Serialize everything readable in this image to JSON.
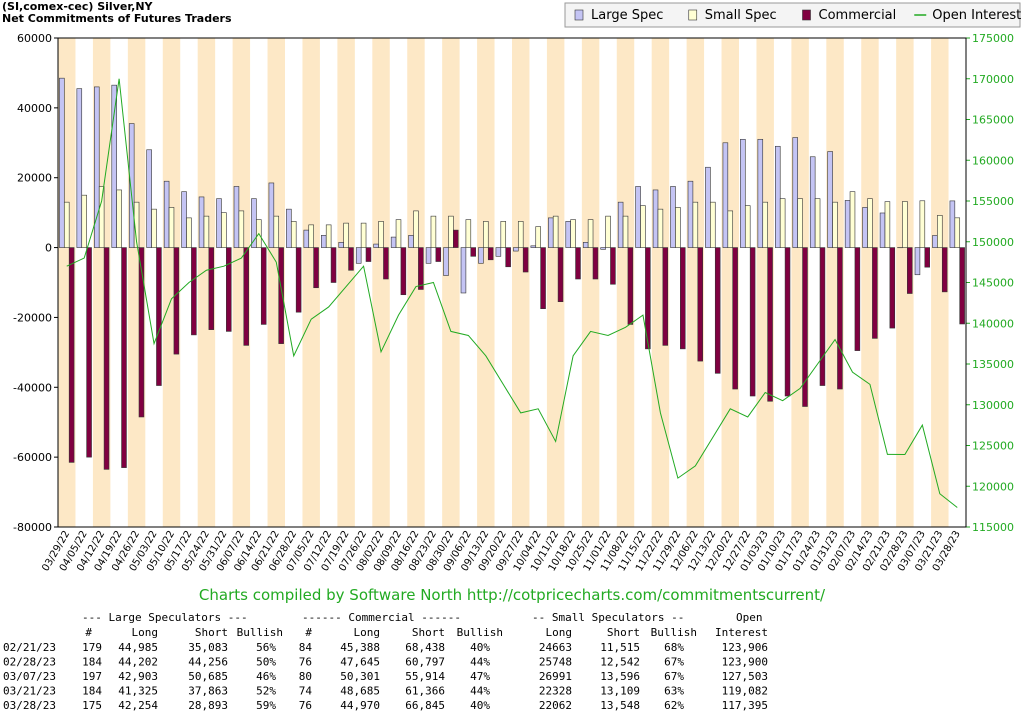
{
  "chart_data": {
    "type": "bar",
    "title": "(SI,comex-cec) Silver,NY",
    "subtitle": "Net Commitments of Futures Traders",
    "categories": [
      "03/29/22",
      "04/05/22",
      "04/12/22",
      "04/19/22",
      "04/26/22",
      "05/03/22",
      "05/10/22",
      "05/17/22",
      "05/24/22",
      "05/31/22",
      "06/07/22",
      "06/14/22",
      "06/21/22",
      "06/28/22",
      "07/05/22",
      "07/12/22",
      "07/19/22",
      "07/26/22",
      "08/02/22",
      "08/09/22",
      "08/16/22",
      "08/23/22",
      "08/30/22",
      "09/06/22",
      "09/13/22",
      "09/20/22",
      "09/27/22",
      "10/04/22",
      "10/11/22",
      "10/18/22",
      "10/25/22",
      "11/01/22",
      "11/08/22",
      "11/15/22",
      "11/22/22",
      "11/29/22",
      "12/06/22",
      "12/13/22",
      "12/20/22",
      "12/27/22",
      "01/03/23",
      "01/10/23",
      "01/17/23",
      "01/24/23",
      "01/31/23",
      "02/07/23",
      "02/14/23",
      "02/21/23",
      "02/28/23",
      "03/07/23",
      "03/21/23",
      "03/28/23"
    ],
    "series": [
      {
        "name": "Large Spec",
        "color": "#c4c4f4",
        "values": [
          48500,
          45500,
          46000,
          46500,
          35500,
          28000,
          19000,
          16000,
          14500,
          14000,
          17500,
          14000,
          18500,
          11000,
          5000,
          3500,
          1500,
          -4500,
          1000,
          3000,
          3500,
          -4500,
          -8000,
          -13000,
          -4500,
          -2500,
          -1000,
          500,
          8500,
          7500,
          1500,
          -500,
          13000,
          17500,
          16500,
          17500,
          19000,
          23000,
          30000,
          31000,
          31000,
          29000,
          31500,
          26000,
          27500,
          13500,
          11500,
          9902,
          -54,
          -7782,
          3462,
          13361
        ]
      },
      {
        "name": "Small Spec",
        "color": "#ffffd4",
        "values": [
          13000,
          15000,
          17500,
          16500,
          13000,
          11000,
          11500,
          8500,
          9000,
          10000,
          10500,
          8000,
          9000,
          7500,
          6500,
          6500,
          7000,
          7000,
          7500,
          8000,
          10500,
          9000,
          9000,
          8000,
          7500,
          7500,
          7500,
          6000,
          9000,
          8000,
          8000,
          9000,
          9000,
          12000,
          11000,
          11500,
          13000,
          13000,
          10500,
          12000,
          13000,
          14000,
          14000,
          14000,
          13000,
          16000,
          14000,
          13148,
          13206,
          13395,
          9219,
          8514
        ]
      },
      {
        "name": "Commercial",
        "color": "#800040",
        "values": [
          -61500,
          -60000,
          -63500,
          -63000,
          -48500,
          -39500,
          -30500,
          -25000,
          -23500,
          -24000,
          -28000,
          -22000,
          -27500,
          -18500,
          -11500,
          -10000,
          -6500,
          -4000,
          -9000,
          -13500,
          -12000,
          -4000,
          5000,
          -2500,
          -3500,
          -5500,
          -7000,
          -17500,
          -15500,
          -9000,
          -9000,
          -10500,
          -22000,
          -29000,
          -28000,
          -29000,
          -32500,
          -36000,
          -40500,
          -42500,
          -44000,
          -42500,
          -45500,
          -39500,
          -40500,
          -29500,
          -26000,
          -23050,
          -13152,
          -5613,
          -12681,
          -21875
        ]
      },
      {
        "name": "Open Interest",
        "color": "#22aa22",
        "type": "line",
        "axis": "y2",
        "values": [
          147000,
          148000,
          155000,
          170000,
          150000,
          137500,
          143000,
          145000,
          146500,
          147000,
          148000,
          151000,
          147500,
          136000,
          140500,
          142000,
          144500,
          147000,
          136500,
          141000,
          144500,
          145000,
          139000,
          138500,
          136000,
          132500,
          129000,
          129500,
          125500,
          136000,
          139000,
          138500,
          139500,
          141000,
          129000,
          121000,
          122500,
          126000,
          129500,
          128500,
          131500,
          130500,
          132000,
          135000,
          138000,
          134000,
          132500,
          123906,
          123900,
          127503,
          119082,
          117395
        ]
      }
    ],
    "ylim": [
      -80000,
      60000
    ],
    "yticks": [
      60000,
      40000,
      20000,
      0,
      -20000,
      -40000,
      -60000,
      -80000
    ],
    "y2lim": [
      115000,
      175000
    ],
    "y2ticks": [
      175000,
      170000,
      165000,
      160000,
      155000,
      150000,
      145000,
      140000,
      135000,
      130000,
      125000,
      120000,
      115000
    ],
    "legend": "top-right",
    "band_color": "#fde8c6",
    "footer": "Charts compiled by Software North  http://cotpricecharts.com/commitmentscurrent/"
  },
  "table": {
    "group_headers": [
      "--- Large Speculators ---",
      "------ Commercial ------",
      "-- Small Speculators --",
      "Open"
    ],
    "columns": [
      "#",
      "Long",
      "Short",
      "Bullish",
      "#",
      "Long",
      "Short",
      "Bullish",
      "Long",
      "Short",
      "Bullish",
      "Interest"
    ],
    "rows": [
      [
        "02/21/23",
        "179",
        "44,985",
        "35,083",
        "56%",
        "84",
        "45,388",
        "68,438",
        "40%",
        "24663",
        "11,515",
        "68%",
        "123,906"
      ],
      [
        "02/28/23",
        "184",
        "44,202",
        "44,256",
        "50%",
        "76",
        "47,645",
        "60,797",
        "44%",
        "25748",
        "12,542",
        "67%",
        "123,900"
      ],
      [
        "03/07/23",
        "197",
        "42,903",
        "50,685",
        "46%",
        "80",
        "50,301",
        "55,914",
        "47%",
        "26991",
        "13,596",
        "67%",
        "127,503"
      ],
      [
        "03/21/23",
        "184",
        "41,325",
        "37,863",
        "52%",
        "74",
        "48,685",
        "61,366",
        "44%",
        "22328",
        "13,109",
        "63%",
        "119,082"
      ],
      [
        "03/28/23",
        "175",
        "42,254",
        "28,893",
        "59%",
        "76",
        "44,970",
        "66,845",
        "40%",
        "22062",
        "13,548",
        "62%",
        "117,395"
      ]
    ]
  }
}
